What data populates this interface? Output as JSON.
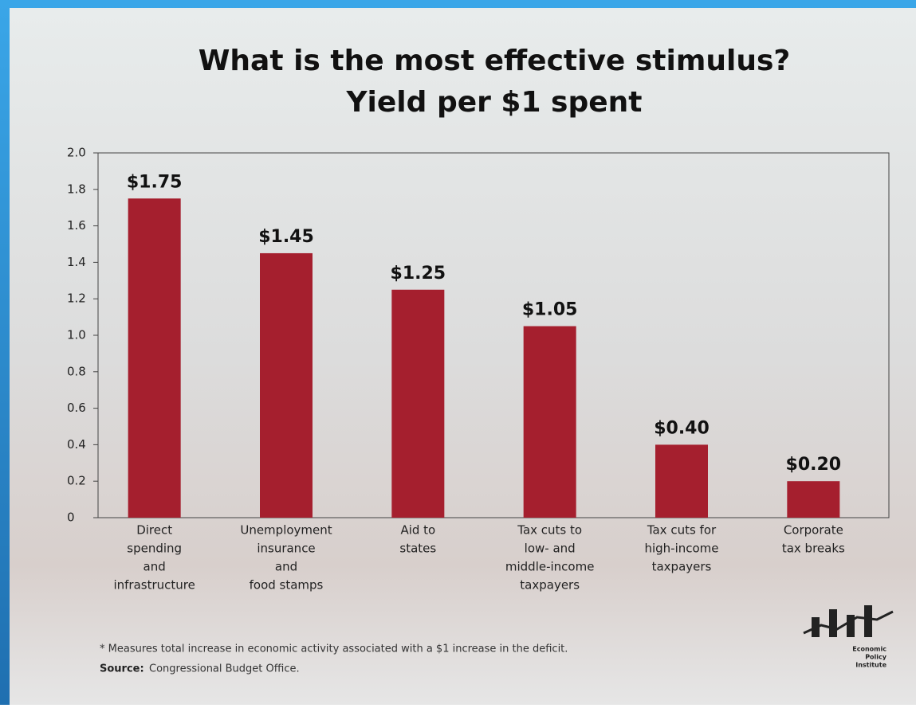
{
  "chart_data": {
    "type": "bar",
    "title": [
      "What is the most effective stimulus?",
      "Yield per $1 spent"
    ],
    "categories": [
      [
        "Direct",
        "spending",
        "and",
        "infrastructure"
      ],
      [
        "Unemployment",
        "insurance",
        "and",
        "food stamps"
      ],
      [
        "Aid to",
        "states"
      ],
      [
        "Tax cuts to",
        "low- and",
        "middle-income",
        "taxpayers"
      ],
      [
        "Tax cuts for",
        "high-income",
        "taxpayers"
      ],
      [
        "Corporate",
        "tax breaks"
      ]
    ],
    "values": [
      1.75,
      1.45,
      1.25,
      1.05,
      0.4,
      0.2
    ],
    "value_labels": [
      "$1.75",
      "$1.45",
      "$1.25",
      "$1.05",
      "$0.40",
      "$0.20"
    ],
    "color": "#a51f2e",
    "ylim": [
      0,
      2
    ],
    "yticks": [
      0,
      0.2,
      0.4,
      0.6,
      0.8,
      {
        "value": 1,
        "label": "1.0"
      },
      1.2,
      1.4,
      1.6,
      1.8,
      {
        "value": 2,
        "label": "2.0"
      }
    ],
    "footnote": "* Measures total increase in economic activity associated with a $1 increase in the deficit.",
    "source_label": "Source:",
    "source": "Congressional Budget Office.",
    "logo": [
      "Economic",
      "Policy",
      "Institute"
    ]
  }
}
